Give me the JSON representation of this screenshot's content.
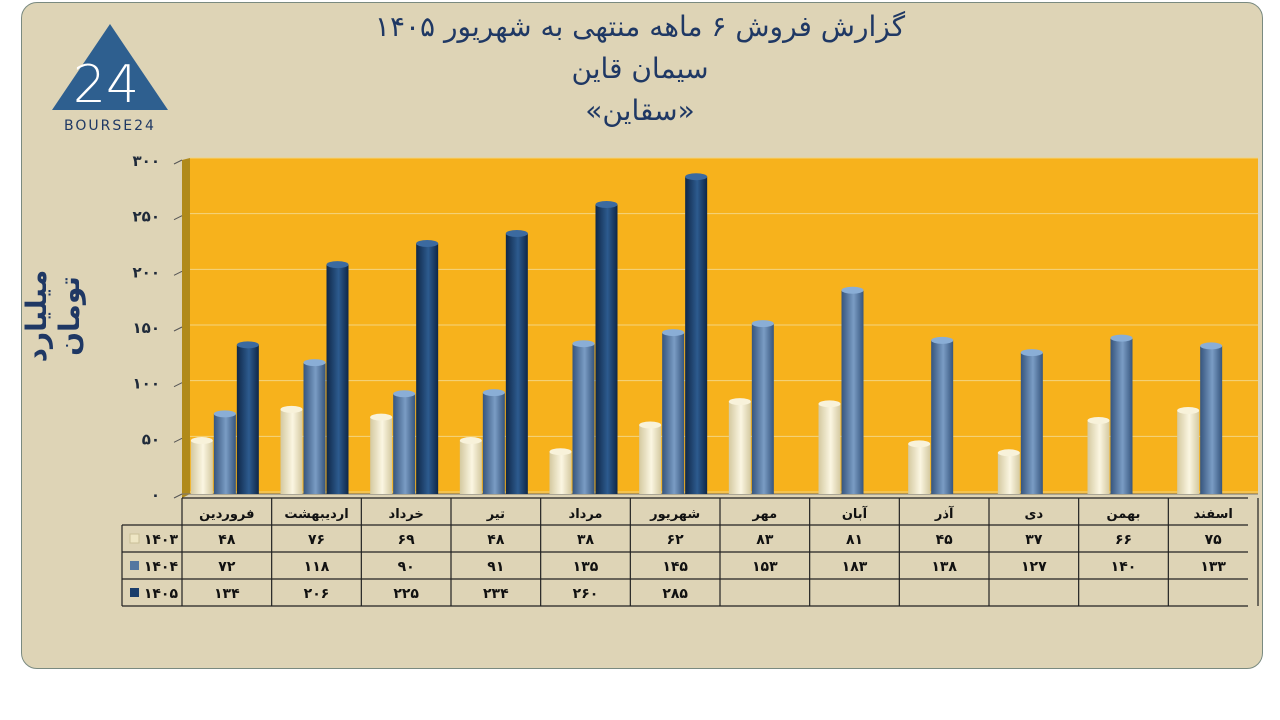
{
  "header": {
    "title_line1": "گزارش فروش ۶ ماهه منتهی به شهریور ۱۴۰۵",
    "title_line2": "سیمان قاین",
    "title_line3": "«سقاین»"
  },
  "logo": {
    "text": "BOURSE24",
    "mark": "24"
  },
  "colors": {
    "plot_bg": "#f7b21c",
    "frame_bg": "#ded4b6",
    "s1403": "#eee6c4",
    "s1404": "#5577a0",
    "s1405": "#1a3d6b",
    "text": "#1f3864"
  },
  "chart_data": {
    "type": "bar",
    "ylabel": "میلیارد تومان",
    "ylim": [
      0,
      300
    ],
    "yticks": [
      "۰",
      "۵۰",
      "۱۰۰",
      "۱۵۰",
      "۲۰۰",
      "۲۵۰",
      "۳۰۰"
    ],
    "grid": true,
    "categories": [
      "فروردین",
      "اردیبهشت",
      "خرداد",
      "تیر",
      "مرداد",
      "شهریور",
      "مهر",
      "آبان",
      "آذر",
      "دی",
      "بهمن",
      "اسفند"
    ],
    "series": [
      {
        "name": "۱۴۰۳",
        "values": [
          48,
          76,
          69,
          48,
          38,
          62,
          83,
          81,
          45,
          37,
          66,
          75
        ],
        "labels": [
          "۴۸",
          "۷۶",
          "۶۹",
          "۴۸",
          "۳۸",
          "۶۲",
          "۸۳",
          "۸۱",
          "۴۵",
          "۳۷",
          "۶۶",
          "۷۵"
        ]
      },
      {
        "name": "۱۴۰۴",
        "values": [
          72,
          118,
          90,
          91,
          135,
          145,
          153,
          183,
          138,
          127,
          140,
          133
        ],
        "labels": [
          "۷۲",
          "۱۱۸",
          "۹۰",
          "۹۱",
          "۱۳۵",
          "۱۴۵",
          "۱۵۳",
          "۱۸۳",
          "۱۳۸",
          "۱۲۷",
          "۱۴۰",
          "۱۳۳"
        ]
      },
      {
        "name": "۱۴۰۵",
        "values": [
          134,
          206,
          225,
          234,
          260,
          285,
          null,
          null,
          null,
          null,
          null,
          null
        ],
        "labels": [
          "۱۳۴",
          "۲۰۶",
          "۲۲۵",
          "۲۳۴",
          "۲۶۰",
          "۲۸۵",
          "",
          "",
          "",
          "",
          "",
          ""
        ]
      }
    ]
  }
}
